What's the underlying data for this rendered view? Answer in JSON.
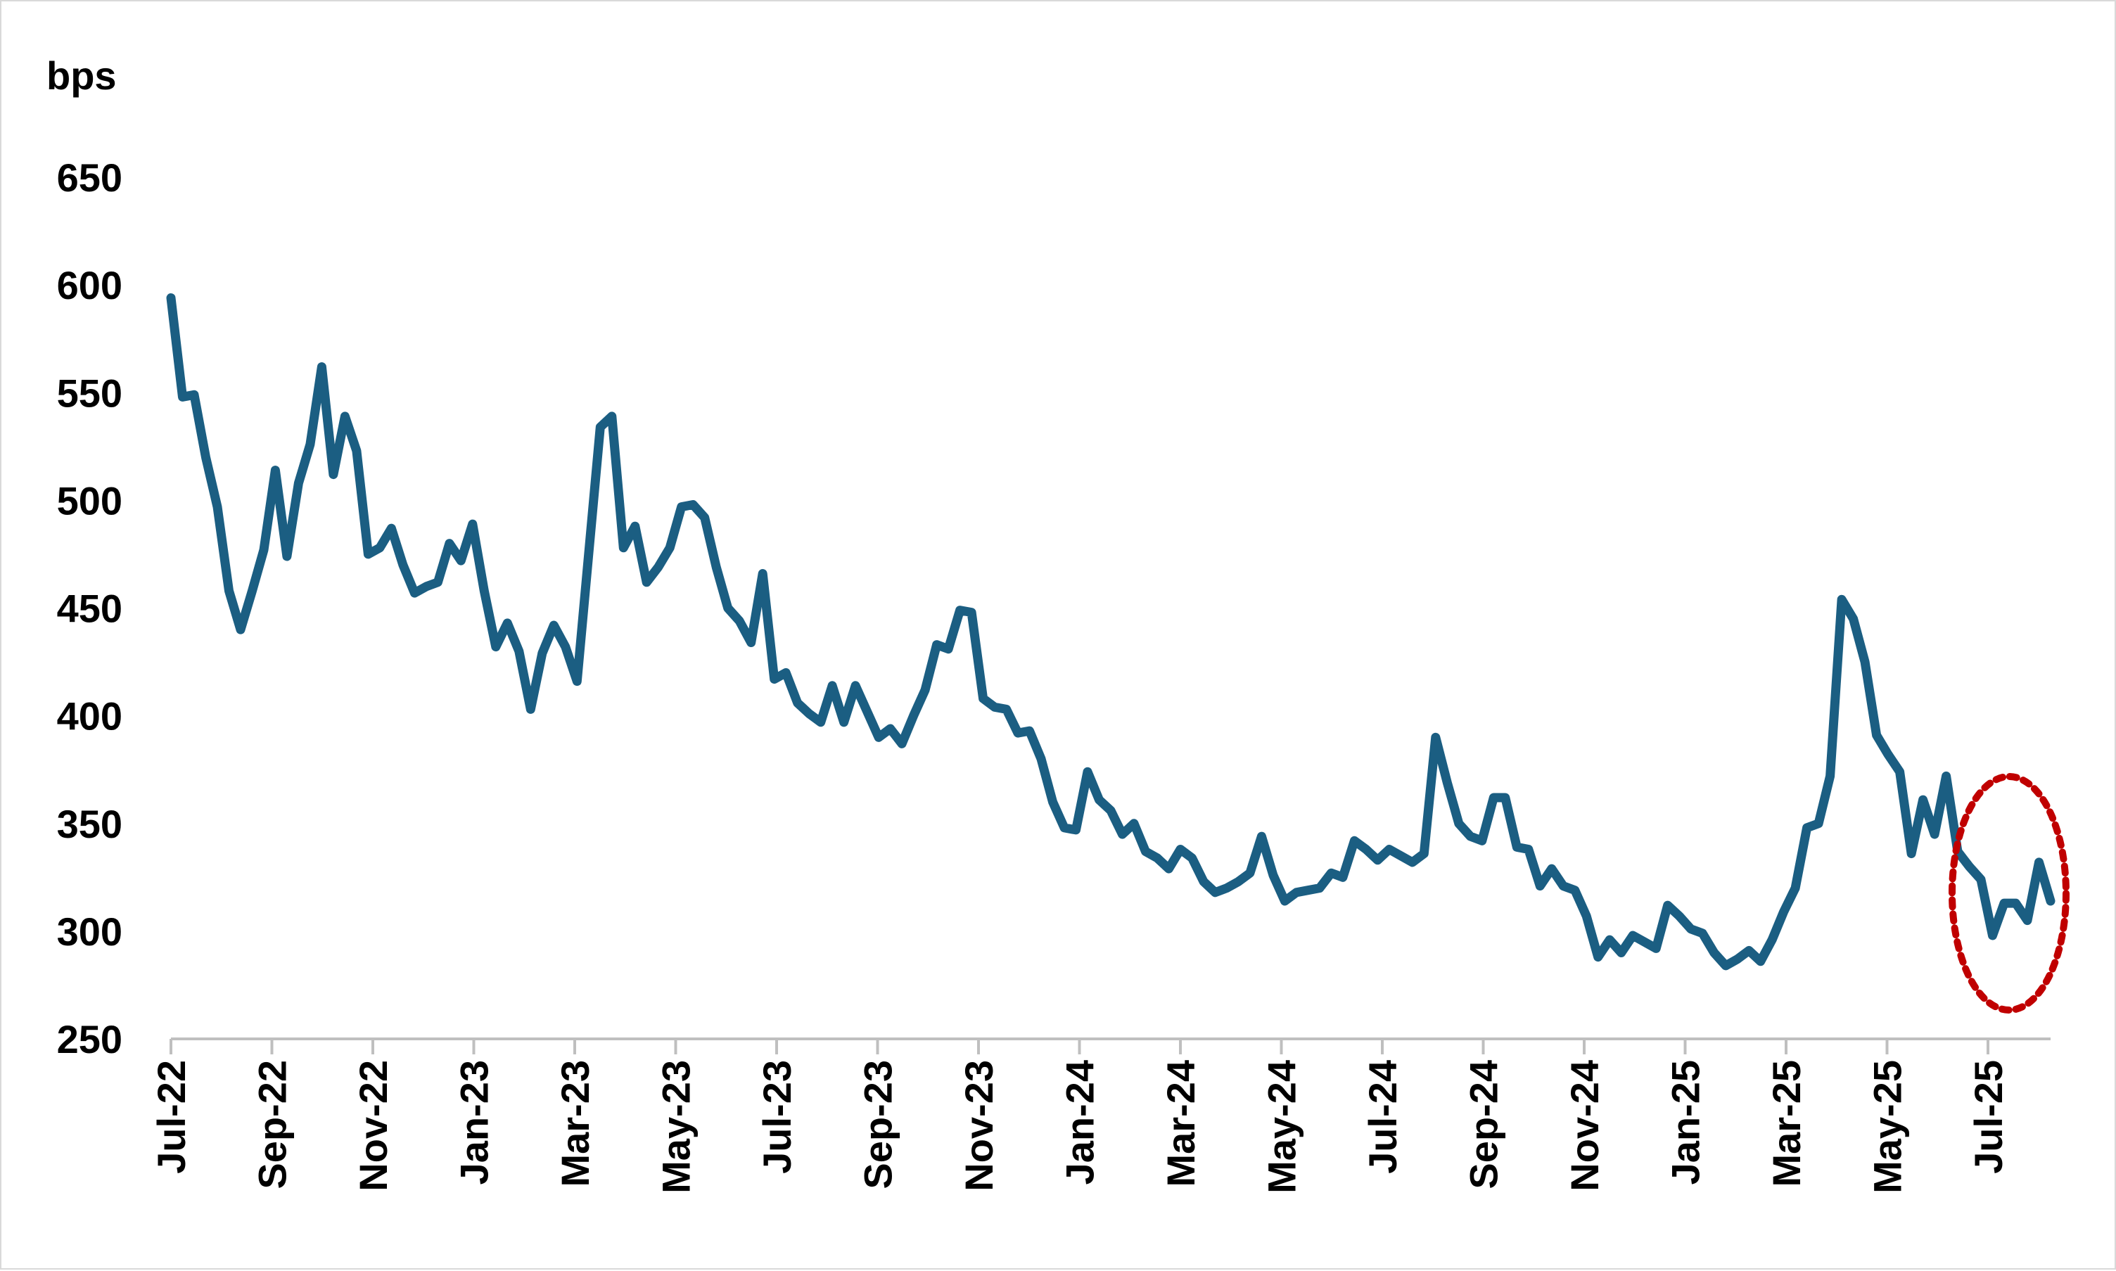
{
  "chart_data": {
    "type": "line",
    "title": "",
    "xlabel": "",
    "ylabel": "bps",
    "ylim": [
      250,
      650
    ],
    "yticks": [
      250,
      300,
      350,
      400,
      450,
      500,
      550,
      600,
      650
    ],
    "xticks": [
      "Jul-22",
      "Sep-22",
      "Nov-22",
      "Jan-23",
      "Mar-23",
      "May-23",
      "Jul-23",
      "Sep-23",
      "Nov-23",
      "Jan-24",
      "Mar-24",
      "May-24",
      "Jul-24",
      "Sep-24",
      "Nov-24",
      "Jan-25",
      "Mar-25",
      "May-25",
      "Jul-25"
    ],
    "x_start": "Jul-22",
    "x_end": "Aug-25",
    "grid": false,
    "legend": "none",
    "line_color": "#1b5e82",
    "annotation": {
      "type": "dotted-ellipse",
      "color": "#c00000",
      "around": "Jul-25 to Aug-25"
    },
    "series": [
      {
        "values": [
          594,
          548,
          549,
          520,
          497,
          458,
          440,
          458,
          477,
          514,
          474,
          508,
          526,
          562,
          512,
          539,
          523,
          475,
          478,
          487,
          470,
          457,
          460,
          462,
          480,
          472,
          489,
          458,
          432,
          443,
          430,
          403,
          429,
          442,
          432,
          416,
          475,
          534,
          539,
          478,
          488,
          462,
          469,
          478,
          497,
          498,
          492,
          469,
          450,
          444,
          434,
          466,
          417,
          420,
          406,
          401,
          397,
          414,
          397,
          414,
          402,
          390,
          394,
          387,
          400,
          412,
          433,
          431,
          449,
          448,
          408,
          404,
          403,
          392,
          393,
          380,
          360,
          348,
          347,
          374,
          361,
          356,
          345,
          350,
          337,
          334,
          329,
          338,
          334,
          323,
          318,
          320,
          323,
          327,
          344,
          326,
          314,
          318,
          319,
          320,
          327,
          325,
          342,
          338,
          333,
          338,
          335,
          332,
          336,
          390,
          369,
          350,
          344,
          342,
          362,
          362,
          339,
          338,
          321,
          329,
          321,
          319,
          307,
          288,
          296,
          290,
          298,
          295,
          292,
          312,
          307,
          301,
          299,
          290,
          284,
          287,
          291,
          286,
          296,
          309,
          320,
          348,
          350,
          372,
          454,
          445,
          425,
          391,
          382,
          374,
          336,
          361,
          345,
          372,
          337,
          330,
          324,
          298,
          313,
          313,
          305,
          332,
          314
        ]
      }
    ]
  }
}
